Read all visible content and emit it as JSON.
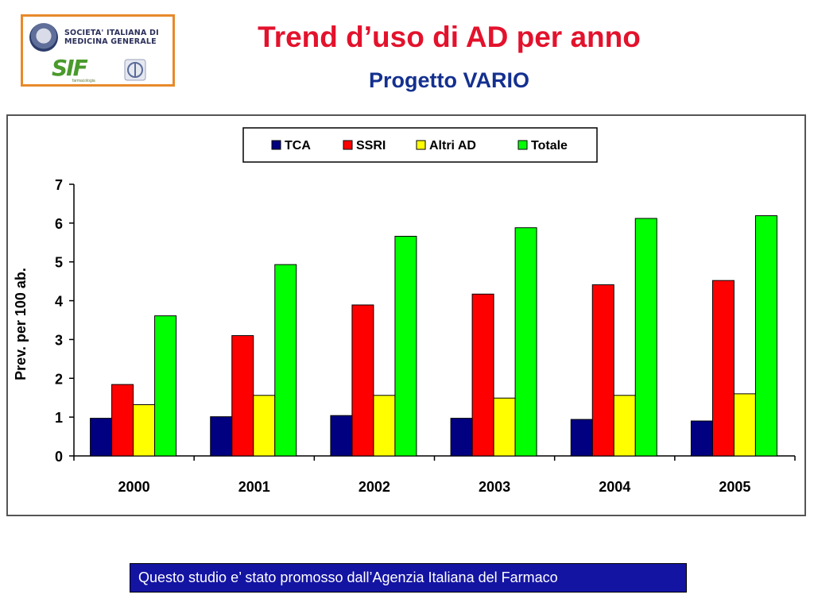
{
  "header": {
    "logo_text": "SOCIETA' ITALIANA DI\nMEDICINA GENERALE",
    "logo_sif": "SIF",
    "logo_sif_sub": "farmacologia",
    "title": "Trend d’uso di AD per anno",
    "subtitle": "Progetto VARIO"
  },
  "footer": {
    "text": "Questo studio e’ stato promosso dall’Agenzia Italiana del Farmaco"
  },
  "colors": {
    "title": "#e3122c",
    "subtitle": "#14308f",
    "logo_border": "#e8892b",
    "footer_bg": "#1414a3"
  },
  "chart_data": {
    "type": "bar",
    "categories": [
      "2000",
      "2001",
      "2002",
      "2003",
      "2004",
      "2005"
    ],
    "series": [
      {
        "name": "TCA",
        "color": "#000080",
        "values": [
          0.97,
          1.01,
          1.04,
          0.97,
          0.94,
          0.9
        ]
      },
      {
        "name": "SSRI",
        "color": "#ff0000",
        "values": [
          1.84,
          3.1,
          3.89,
          4.17,
          4.41,
          4.52
        ]
      },
      {
        "name": "Altri AD",
        "color": "#ffff00",
        "values": [
          1.32,
          1.56,
          1.56,
          1.49,
          1.56,
          1.6
        ]
      },
      {
        "name": "Totale",
        "color": "#00ff00",
        "values": [
          3.61,
          4.93,
          5.66,
          5.88,
          6.12,
          6.19
        ]
      }
    ],
    "ylabel": "Prev. per 100 ab.",
    "xlabel": "",
    "ylim": [
      0,
      7
    ],
    "yticks": [
      0,
      1,
      2,
      3,
      4,
      5,
      6,
      7
    ],
    "grid": false,
    "legend_position": "top"
  }
}
